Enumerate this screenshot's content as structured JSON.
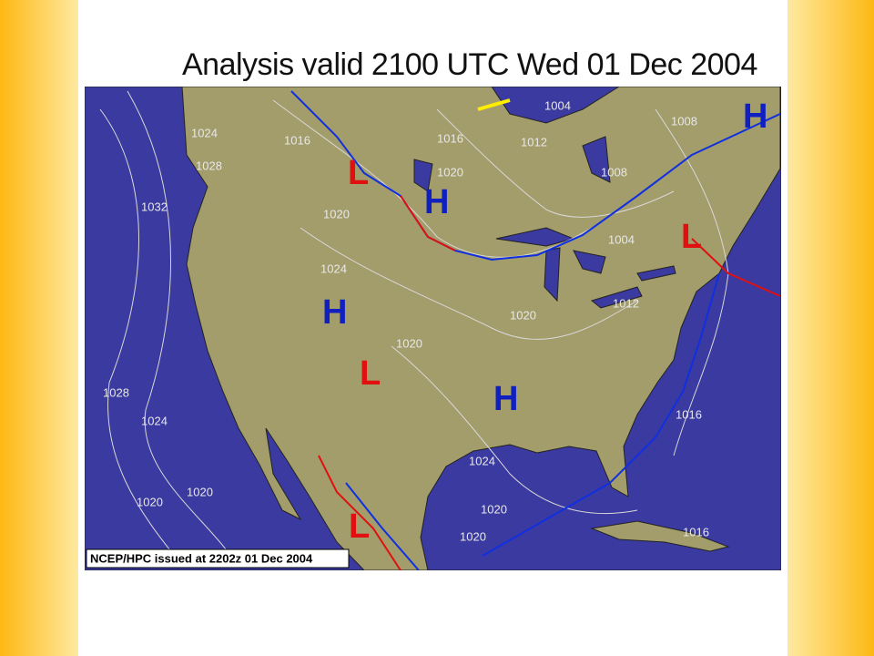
{
  "title": "Analysis valid 2100 UTC Wed 01 Dec 2004",
  "pressure_centers": [
    "H",
    "L",
    "H",
    "L",
    "H",
    "L",
    "H",
    "L"
  ],
  "isobar_labels": [
    "1004",
    "1024",
    "1016",
    "1028",
    "1016",
    "1012",
    "1008",
    "1020",
    "1008",
    "1032",
    "1020",
    "1024",
    "1004",
    "1012",
    "1020",
    "1020",
    "1028",
    "1024",
    "1016",
    "1024",
    "1020",
    "1020",
    "1020",
    "1020",
    "1016"
  ],
  "footer": "NCEP/HPC issued at 2202z  01 Dec 2004"
}
